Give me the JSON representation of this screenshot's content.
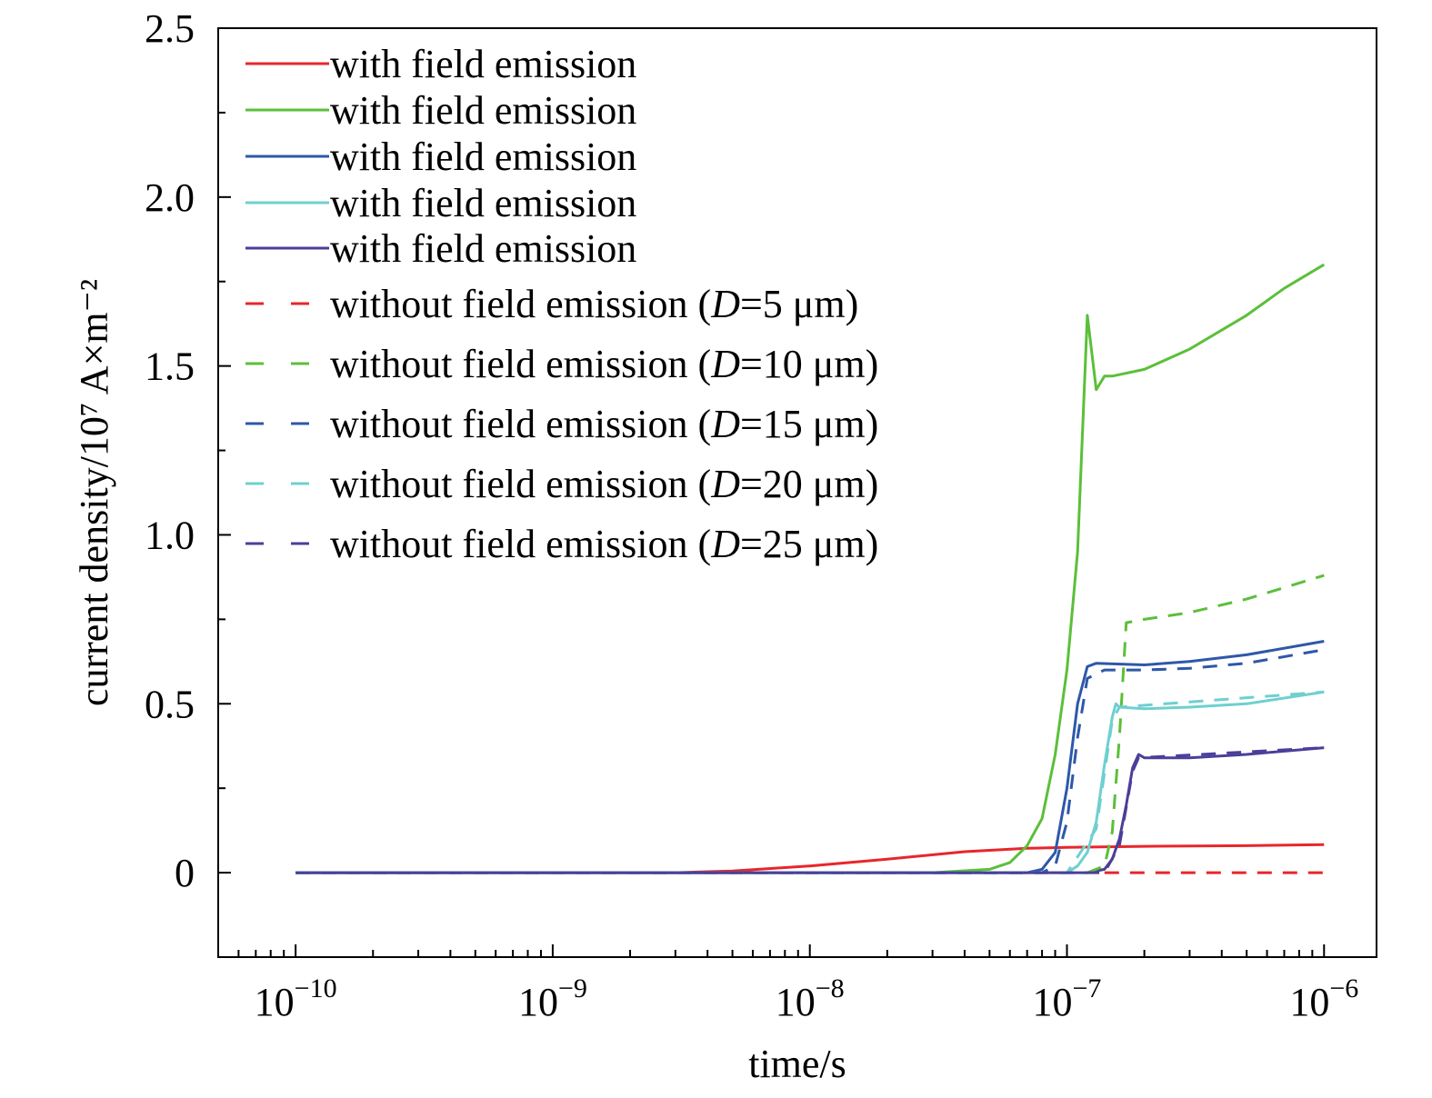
{
  "chart_data": {
    "type": "line",
    "xlabel": "time/s",
    "ylabel": "current density/10⁷ A×m⁻²",
    "x_scale": "log",
    "xlim": [
      5e-11,
      1.6e-06
    ],
    "ylim": [
      -0.25,
      2.5
    ],
    "x_ticks": [
      {
        "value": 1e-10,
        "base": "10",
        "exp": "−10"
      },
      {
        "value": 1e-09,
        "base": "10",
        "exp": "−9"
      },
      {
        "value": 1e-08,
        "base": "10",
        "exp": "−8"
      },
      {
        "value": 1e-07,
        "base": "10",
        "exp": "−7"
      },
      {
        "value": 1e-06,
        "base": "10",
        "exp": "−6"
      }
    ],
    "y_ticks": [
      {
        "value": 0,
        "label": "0"
      },
      {
        "value": 0.5,
        "label": "0.5"
      },
      {
        "value": 1.0,
        "label": "1.0"
      },
      {
        "value": 1.5,
        "label": "1.5"
      },
      {
        "value": 2.0,
        "label": "2.0"
      },
      {
        "value": 2.5,
        "label": "2.5"
      }
    ],
    "grid": false,
    "legend_position": "top-left",
    "series": [
      {
        "name": "with field emission",
        "color": "#e8262b",
        "dash": false,
        "points": [
          [
            1e-10,
            0
          ],
          [
            3e-09,
            0
          ],
          [
            5e-09,
            0.005
          ],
          [
            1e-08,
            0.02
          ],
          [
            2e-08,
            0.04
          ],
          [
            4e-08,
            0.062
          ],
          [
            7e-08,
            0.072
          ],
          [
            1e-07,
            0.075
          ],
          [
            2e-07,
            0.078
          ],
          [
            5e-07,
            0.08
          ],
          [
            1e-06,
            0.083
          ]
        ]
      },
      {
        "name": "with field emission",
        "color": "#5cbf3a",
        "dash": false,
        "points": [
          [
            1e-10,
            0
          ],
          [
            3e-08,
            0
          ],
          [
            5e-08,
            0.01
          ],
          [
            6e-08,
            0.03
          ],
          [
            7e-08,
            0.08
          ],
          [
            8e-08,
            0.16
          ],
          [
            9e-08,
            0.35
          ],
          [
            1e-07,
            0.6
          ],
          [
            1.1e-07,
            0.95
          ],
          [
            1.2e-07,
            1.65
          ],
          [
            1.3e-07,
            1.43
          ],
          [
            1.4e-07,
            1.47
          ],
          [
            1.5e-07,
            1.47
          ],
          [
            2e-07,
            1.49
          ],
          [
            3e-07,
            1.55
          ],
          [
            5e-07,
            1.65
          ],
          [
            7e-07,
            1.73
          ],
          [
            1e-06,
            1.8
          ]
        ]
      },
      {
        "name": "with field emission",
        "color": "#2e58a8",
        "dash": false,
        "points": [
          [
            1e-10,
            0
          ],
          [
            7e-08,
            0
          ],
          [
            8e-08,
            0.01
          ],
          [
            9e-08,
            0.06
          ],
          [
            1e-07,
            0.25
          ],
          [
            1.1e-07,
            0.5
          ],
          [
            1.2e-07,
            0.61
          ],
          [
            1.3e-07,
            0.62
          ],
          [
            2e-07,
            0.615
          ],
          [
            3e-07,
            0.625
          ],
          [
            5e-07,
            0.645
          ],
          [
            1e-06,
            0.685
          ]
        ]
      },
      {
        "name": "with field emission",
        "color": "#6fcfd0",
        "dash": false,
        "points": [
          [
            1e-10,
            0
          ],
          [
            1e-07,
            0
          ],
          [
            1.1e-07,
            0.02
          ],
          [
            1.2e-07,
            0.06
          ],
          [
            1.3e-07,
            0.15
          ],
          [
            1.4e-07,
            0.32
          ],
          [
            1.5e-07,
            0.46
          ],
          [
            1.55e-07,
            0.5
          ],
          [
            1.6e-07,
            0.49
          ],
          [
            2e-07,
            0.485
          ],
          [
            3e-07,
            0.49
          ],
          [
            5e-07,
            0.5
          ],
          [
            1e-06,
            0.535
          ]
        ]
      },
      {
        "name": "with field emission",
        "color": "#4a3f99",
        "dash": false,
        "points": [
          [
            1e-10,
            0
          ],
          [
            1.2e-07,
            0
          ],
          [
            1.4e-07,
            0.01
          ],
          [
            1.5e-07,
            0.04
          ],
          [
            1.6e-07,
            0.1
          ],
          [
            1.7e-07,
            0.2
          ],
          [
            1.8e-07,
            0.31
          ],
          [
            1.9e-07,
            0.35
          ],
          [
            2e-07,
            0.34
          ],
          [
            3e-07,
            0.34
          ],
          [
            5e-07,
            0.35
          ],
          [
            1e-06,
            0.37
          ]
        ]
      },
      {
        "name": "without field emission (D=5 μm)",
        "color": "#e8262b",
        "dash": true,
        "points": [
          [
            1.4e-07,
            0
          ],
          [
            1e-06,
            0
          ]
        ]
      },
      {
        "name": "without field emission (D=10 μm)",
        "color": "#5cbf3a",
        "dash": true,
        "points": [
          [
            1.2e-07,
            0
          ],
          [
            1.4e-07,
            0.02
          ],
          [
            1.5e-07,
            0.12
          ],
          [
            1.6e-07,
            0.4
          ],
          [
            1.7e-07,
            0.74
          ],
          [
            2e-07,
            0.75
          ],
          [
            3e-07,
            0.77
          ],
          [
            5e-07,
            0.81
          ],
          [
            1e-06,
            0.88
          ]
        ]
      },
      {
        "name": "without field emission (D=15 μm)",
        "color": "#2e58a8",
        "dash": true,
        "points": [
          [
            1e-10,
            0
          ],
          [
            8e-08,
            0
          ],
          [
            9e-08,
            0.02
          ],
          [
            1e-07,
            0.15
          ],
          [
            1.1e-07,
            0.4
          ],
          [
            1.2e-07,
            0.575
          ],
          [
            1.4e-07,
            0.6
          ],
          [
            2e-07,
            0.6
          ],
          [
            3e-07,
            0.605
          ],
          [
            5e-07,
            0.62
          ],
          [
            1e-06,
            0.66
          ]
        ]
      },
      {
        "name": "without field emission (D=20 μm)",
        "color": "#6fcfd0",
        "dash": true,
        "points": [
          [
            1e-10,
            0
          ],
          [
            1e-07,
            0
          ],
          [
            1.3e-07,
            0.13
          ],
          [
            1.5e-07,
            0.45
          ],
          [
            1.6e-07,
            0.49
          ],
          [
            1e-06,
            0.535
          ]
        ]
      },
      {
        "name": "without field emission (D=25 μm)",
        "color": "#4a3f99",
        "dash": true,
        "points": [
          [
            1e-10,
            0
          ],
          [
            1.4e-07,
            0
          ],
          [
            1.6e-07,
            0.08
          ],
          [
            1.8e-07,
            0.3
          ],
          [
            1.9e-07,
            0.34
          ],
          [
            1e-06,
            0.37
          ]
        ]
      }
    ]
  }
}
